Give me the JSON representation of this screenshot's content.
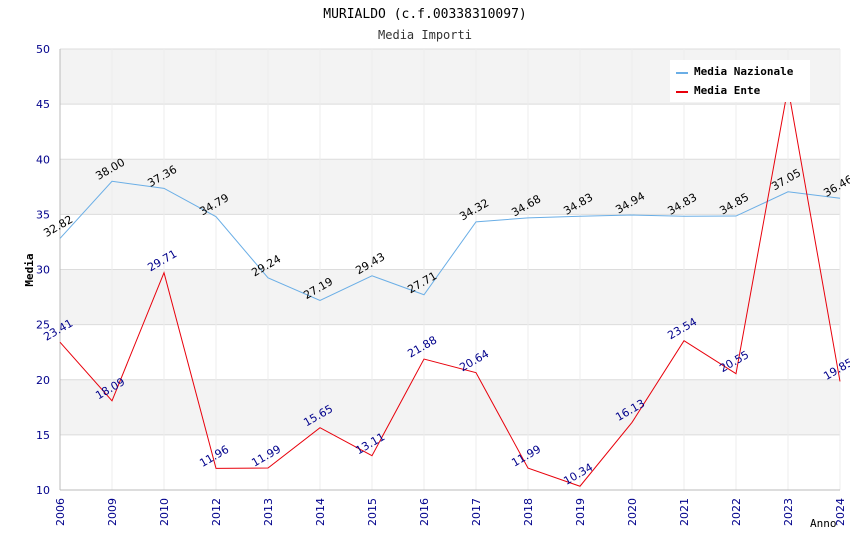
{
  "chart_data": {
    "type": "line",
    "title": "MURIALDO (c.f.00338310097)",
    "subtitle": "Media Importi",
    "xlabel": "Anno",
    "ylabel": "Media",
    "ylim": [
      10,
      50
    ],
    "yticks": [
      10,
      15,
      20,
      25,
      30,
      35,
      40,
      45,
      50
    ],
    "grid": true,
    "legend_position": "top-right",
    "categories": [
      "2006",
      "2009",
      "2010",
      "2012",
      "2013",
      "2014",
      "2015",
      "2016",
      "2017",
      "2018",
      "2019",
      "2020",
      "2021",
      "2022",
      "2023",
      "2024"
    ],
    "series": [
      {
        "name": "Media Nazionale",
        "color": "#6aaee6",
        "label_color": "#000000",
        "values": [
          32.82,
          38.0,
          37.36,
          34.79,
          29.24,
          27.19,
          29.43,
          27.71,
          34.32,
          34.68,
          34.83,
          34.94,
          34.83,
          34.85,
          37.05,
          36.46
        ],
        "labels": [
          "32.82",
          "38.00",
          "37.36",
          "34.79",
          "29.24",
          "27.19",
          "29.43",
          "27.71",
          "34.32",
          "34.68",
          "34.83",
          "34.94",
          "34.83",
          "34.85",
          "37.05",
          "36.46"
        ]
      },
      {
        "name": "Media Ente",
        "color": "#e8000b",
        "label_color": "#00008b",
        "values": [
          23.41,
          18.09,
          29.71,
          11.96,
          11.99,
          15.65,
          13.11,
          21.88,
          20.64,
          11.99,
          10.34,
          16.13,
          23.54,
          20.55,
          46.5,
          19.85
        ],
        "labels": [
          "23.41",
          "18.09",
          "29.71",
          "11.96",
          "11.99",
          "15.65",
          "13.11",
          "21.88",
          "20.64",
          "11.99",
          "10.34",
          "16.13",
          "23.54",
          "20.55",
          "",
          "19.85"
        ]
      }
    ]
  }
}
